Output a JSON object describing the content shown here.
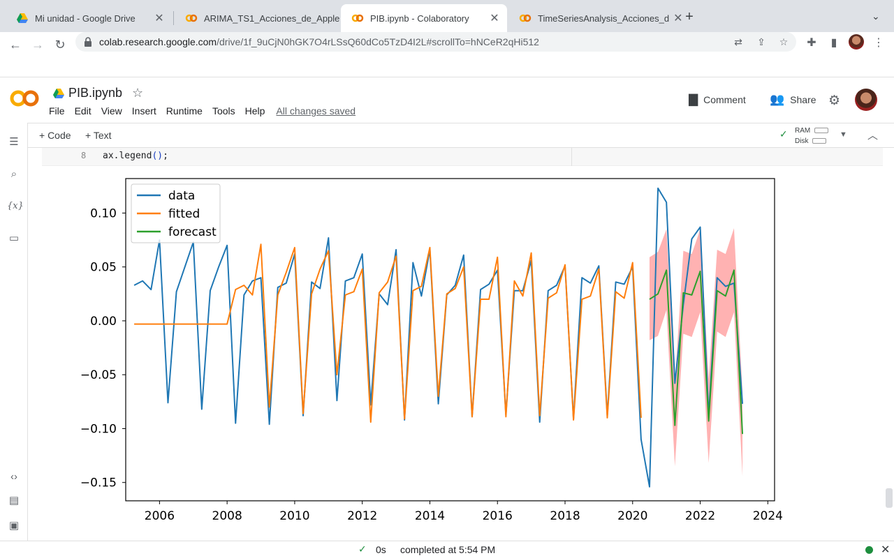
{
  "browser": {
    "tabs": [
      {
        "title": "Mi unidad - Google Drive",
        "icon": "google-drive-icon",
        "active": false
      },
      {
        "title": "ARIMA_TS1_Acciones_de_Apple",
        "icon": "colab-icon",
        "active": false
      },
      {
        "title": "PIB.ipynb - Colaboratory",
        "icon": "colab-icon",
        "active": true
      },
      {
        "title": "TimeSeriesAnalysis_Acciones_d",
        "icon": "colab-icon",
        "active": false
      }
    ],
    "url_host": "colab.research.google.com",
    "url_path": "/drive/1f_9uCjN0hGK7O4rLSsQ60dCo5TzD4I2L#scrollTo=hNCeR2qHi512"
  },
  "colab": {
    "notebook_title": "PIB.ipynb",
    "menu": [
      "File",
      "Edit",
      "View",
      "Insert",
      "Runtime",
      "Tools",
      "Help"
    ],
    "saved_status": "All changes saved",
    "comment_label": "Comment",
    "share_label": "Share",
    "add_code_label": "+ Code",
    "add_text_label": "+ Text",
    "ram_label": "RAM",
    "disk_label": "Disk"
  },
  "cell": {
    "line_number": "8",
    "code_prefix": "ax.legend",
    "code_parens": "()",
    "code_suffix": ";"
  },
  "chart_data": {
    "type": "line",
    "xlim": [
      2005,
      2024.2
    ],
    "ylim": [
      -0.167,
      0.132
    ],
    "x_ticks": [
      2006,
      2008,
      2010,
      2012,
      2014,
      2016,
      2018,
      2020,
      2022,
      2024
    ],
    "y_ticks": [
      0.1,
      0.05,
      0.0,
      -0.05,
      -0.1,
      -0.15
    ],
    "x_tick_labels": [
      "2006",
      "2008",
      "2010",
      "2012",
      "2014",
      "2016",
      "2018",
      "2020",
      "2022",
      "2024"
    ],
    "y_tick_labels": [
      "0.10",
      "0.05",
      "0.00",
      "−0.05",
      "−0.10",
      "−0.15"
    ],
    "legend_position": "top-left",
    "grid": false,
    "series": [
      {
        "name": "data",
        "color": "#1f77b4",
        "x": [
          2005.25,
          2005.5,
          2005.75,
          2006.0,
          2006.25,
          2006.5,
          2006.75,
          2007.0,
          2007.25,
          2007.5,
          2007.75,
          2008.0,
          2008.25,
          2008.5,
          2008.75,
          2009.0,
          2009.25,
          2009.5,
          2009.75,
          2010.0,
          2010.25,
          2010.5,
          2010.75,
          2011.0,
          2011.25,
          2011.5,
          2011.75,
          2012.0,
          2012.25,
          2012.5,
          2012.75,
          2013.0,
          2013.25,
          2013.5,
          2013.75,
          2014.0,
          2014.25,
          2014.5,
          2014.75,
          2015.0,
          2015.25,
          2015.5,
          2015.75,
          2016.0,
          2016.25,
          2016.5,
          2016.75,
          2017.0,
          2017.25,
          2017.5,
          2017.75,
          2018.0,
          2018.25,
          2018.5,
          2018.75,
          2019.0,
          2019.25,
          2019.5,
          2019.75,
          2020.0,
          2020.25,
          2020.5,
          2020.75,
          2021.0,
          2021.25,
          2021.5,
          2021.75,
          2022.0,
          2022.25,
          2022.5,
          2022.75,
          2023.0,
          2023.25
        ],
        "values": [
          0.033,
          0.037,
          0.029,
          0.075,
          -0.076,
          0.027,
          0.05,
          0.073,
          -0.082,
          0.028,
          0.05,
          0.07,
          -0.095,
          0.024,
          0.037,
          0.04,
          -0.096,
          0.031,
          0.035,
          0.062,
          -0.088,
          0.036,
          0.03,
          0.077,
          -0.074,
          0.037,
          0.04,
          0.062,
          -0.078,
          0.025,
          0.015,
          0.066,
          -0.092,
          0.054,
          0.023,
          0.066,
          -0.077,
          0.024,
          0.033,
          0.061,
          -0.089,
          0.029,
          0.034,
          0.047,
          -0.087,
          0.028,
          0.028,
          0.056,
          -0.094,
          0.028,
          0.033,
          0.051,
          -0.091,
          0.04,
          0.035,
          0.051,
          -0.088,
          0.036,
          0.034,
          0.05,
          -0.11,
          -0.154,
          0.123,
          0.11,
          -0.058,
          0.015,
          0.076,
          0.087,
          -0.088,
          0.04,
          0.032,
          0.035,
          -0.077
        ]
      },
      {
        "name": "fitted",
        "color": "#ff7f0e",
        "x": [
          2005.25,
          2005.5,
          2005.75,
          2006.0,
          2006.25,
          2006.5,
          2006.75,
          2007.0,
          2007.25,
          2007.5,
          2007.75,
          2008.0,
          2008.25,
          2008.5,
          2008.75,
          2009.0,
          2009.25,
          2009.5,
          2009.75,
          2010.0,
          2010.25,
          2010.5,
          2010.75,
          2011.0,
          2011.25,
          2011.5,
          2011.75,
          2012.0,
          2012.25,
          2012.5,
          2012.75,
          2013.0,
          2013.25,
          2013.5,
          2013.75,
          2014.0,
          2014.25,
          2014.5,
          2014.75,
          2015.0,
          2015.25,
          2015.5,
          2015.75,
          2016.0,
          2016.25,
          2016.5,
          2016.75,
          2017.0,
          2017.25,
          2017.5,
          2017.75,
          2018.0,
          2018.25,
          2018.5,
          2018.75,
          2019.0,
          2019.25,
          2019.5,
          2019.75,
          2020.0,
          2020.25
        ],
        "values": [
          -0.003,
          -0.003,
          -0.003,
          -0.003,
          -0.003,
          -0.003,
          -0.003,
          -0.003,
          -0.003,
          -0.003,
          -0.003,
          -0.003,
          0.029,
          0.033,
          0.024,
          0.071,
          -0.08,
          0.024,
          0.045,
          0.068,
          -0.086,
          0.025,
          0.048,
          0.065,
          -0.05,
          0.024,
          0.027,
          0.048,
          -0.094,
          0.026,
          0.036,
          0.06,
          -0.091,
          0.028,
          0.032,
          0.068,
          -0.07,
          0.025,
          0.03,
          0.05,
          -0.089,
          0.02,
          0.02,
          0.059,
          -0.089,
          0.037,
          0.023,
          0.063,
          -0.088,
          0.021,
          0.026,
          0.052,
          -0.092,
          0.02,
          0.023,
          0.048,
          -0.09,
          0.027,
          0.021,
          0.054,
          -0.09
        ]
      },
      {
        "name": "forecast",
        "color": "#2ca02c",
        "x": [
          2020.5,
          2020.75,
          2021.0,
          2021.25,
          2021.5,
          2021.75,
          2022.0,
          2022.25,
          2022.5,
          2022.75,
          2023.0,
          2023.25
        ],
        "values": [
          0.02,
          0.025,
          0.047,
          -0.097,
          0.026,
          0.024,
          0.046,
          -0.093,
          0.028,
          0.023,
          0.047,
          -0.105
        ],
        "band_color": "#ff0000",
        "lower": [
          -0.018,
          -0.014,
          0.01,
          -0.135,
          -0.012,
          -0.015,
          0.008,
          -0.132,
          -0.01,
          -0.015,
          0.008,
          -0.144
        ],
        "upper": [
          0.059,
          0.064,
          0.085,
          -0.058,
          0.065,
          0.062,
          0.085,
          -0.054,
          0.066,
          0.062,
          0.086,
          -0.066
        ]
      }
    ]
  }
}
